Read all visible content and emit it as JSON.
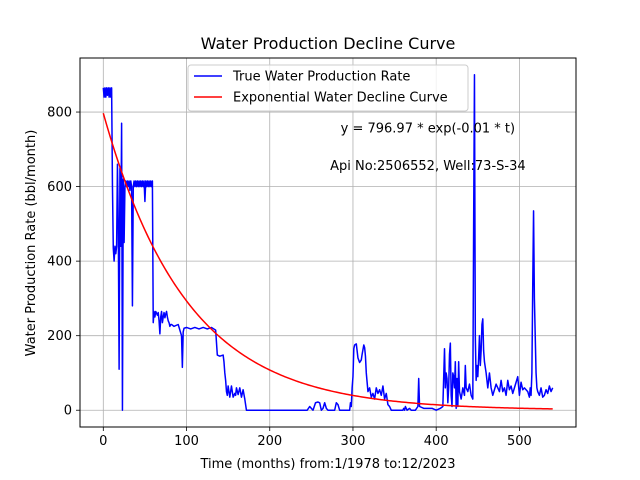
{
  "chart_data": {
    "type": "line",
    "title": "Water Production Decline Curve",
    "xlabel": "Time (months) from:1/1978 to:12/2023",
    "ylabel": "Water Production Rate (bbl/month)",
    "xlim": [
      -28,
      568
    ],
    "ylim": [
      -45,
      945
    ],
    "xticks": [
      0,
      100,
      200,
      300,
      400,
      500
    ],
    "yticks": [
      0,
      200,
      400,
      600,
      800
    ],
    "grid": true,
    "legend_position": "top-center",
    "annotations": [
      {
        "text": "y = 796.97 * exp(-0.01 * t)",
        "x": 390,
        "y": 745
      },
      {
        "text": "Api No:2506552, Well:73-S-34",
        "x": 390,
        "y": 645
      }
    ],
    "series": [
      {
        "name": "True Water Production Rate",
        "color": "#0000ff",
        "points": [
          [
            0,
            865
          ],
          [
            1,
            840
          ],
          [
            2,
            865
          ],
          [
            3,
            840
          ],
          [
            4,
            865
          ],
          [
            5,
            845
          ],
          [
            6,
            865
          ],
          [
            7,
            840
          ],
          [
            8,
            865
          ],
          [
            9,
            840
          ],
          [
            10,
            865
          ],
          [
            11,
            600
          ],
          [
            12,
            435
          ],
          [
            13,
            400
          ],
          [
            14,
            440
          ],
          [
            15,
            420
          ],
          [
            16,
            440
          ],
          [
            17,
            660
          ],
          [
            18,
            500
          ],
          [
            19,
            110
          ],
          [
            20,
            650
          ],
          [
            21,
            440
          ],
          [
            22,
            770
          ],
          [
            23,
            0
          ],
          [
            24,
            620
          ],
          [
            25,
            450
          ],
          [
            26,
            600
          ],
          [
            27,
            615
          ],
          [
            28,
            600
          ],
          [
            29,
            615
          ],
          [
            30,
            600
          ],
          [
            31,
            615
          ],
          [
            32,
            590
          ],
          [
            33,
            615
          ],
          [
            34,
            600
          ],
          [
            35,
            280
          ],
          [
            36,
            600
          ],
          [
            37,
            615
          ],
          [
            38,
            600
          ],
          [
            39,
            615
          ],
          [
            40,
            600
          ],
          [
            41,
            615
          ],
          [
            42,
            600
          ],
          [
            43,
            615
          ],
          [
            44,
            600
          ],
          [
            45,
            615
          ],
          [
            46,
            600
          ],
          [
            47,
            615
          ],
          [
            48,
            600
          ],
          [
            49,
            615
          ],
          [
            50,
            560
          ],
          [
            51,
            615
          ],
          [
            52,
            600
          ],
          [
            53,
            615
          ],
          [
            54,
            600
          ],
          [
            55,
            615
          ],
          [
            56,
            600
          ],
          [
            57,
            615
          ],
          [
            58,
            600
          ],
          [
            59,
            615
          ],
          [
            60,
            235
          ],
          [
            61,
            265
          ],
          [
            62,
            250
          ],
          [
            63,
            265
          ],
          [
            64,
            260
          ],
          [
            65,
            255
          ],
          [
            66,
            262
          ],
          [
            67,
            240
          ],
          [
            68,
            205
          ],
          [
            69,
            250
          ],
          [
            70,
            265
          ],
          [
            71,
            235
          ],
          [
            72,
            250
          ],
          [
            73,
            262
          ],
          [
            74,
            248
          ],
          [
            75,
            258
          ],
          [
            76,
            265
          ],
          [
            77,
            250
          ],
          [
            78,
            240
          ],
          [
            79,
            235
          ],
          [
            80,
            225
          ],
          [
            81,
            230
          ],
          [
            82,
            230
          ],
          [
            85,
            225
          ],
          [
            90,
            230
          ],
          [
            94,
            200
          ],
          [
            95,
            115
          ],
          [
            96,
            210
          ],
          [
            97,
            220
          ],
          [
            100,
            222
          ],
          [
            105,
            218
          ],
          [
            110,
            222
          ],
          [
            115,
            218
          ],
          [
            120,
            222
          ],
          [
            125,
            218
          ],
          [
            130,
            222
          ],
          [
            135,
            215
          ],
          [
            137,
            148
          ],
          [
            140,
            145
          ],
          [
            144,
            148
          ],
          [
            145,
            130
          ],
          [
            146,
            100
          ],
          [
            147,
            80
          ],
          [
            148,
            50
          ],
          [
            149,
            40
          ],
          [
            150,
            65
          ],
          [
            152,
            35
          ],
          [
            154,
            65
          ],
          [
            156,
            35
          ],
          [
            158,
            45
          ],
          [
            159,
            40
          ],
          [
            160,
            60
          ],
          [
            162,
            42
          ],
          [
            164,
            60
          ],
          [
            166,
            35
          ],
          [
            168,
            55
          ],
          [
            170,
            30
          ],
          [
            172,
            0
          ],
          [
            180,
            0
          ],
          [
            200,
            0
          ],
          [
            220,
            0
          ],
          [
            235,
            0
          ],
          [
            245,
            0
          ],
          [
            248,
            10
          ],
          [
            250,
            5
          ],
          [
            252,
            0
          ],
          [
            255,
            20
          ],
          [
            258,
            22
          ],
          [
            260,
            20
          ],
          [
            262,
            0
          ],
          [
            264,
            5
          ],
          [
            266,
            20
          ],
          [
            268,
            5
          ],
          [
            270,
            0
          ],
          [
            278,
            0
          ],
          [
            280,
            20
          ],
          [
            282,
            15
          ],
          [
            284,
            0
          ],
          [
            290,
            0
          ],
          [
            296,
            0
          ],
          [
            297,
            20
          ],
          [
            298,
            10
          ],
          [
            299,
            60
          ],
          [
            300,
            90
          ],
          [
            301,
            165
          ],
          [
            302,
            175
          ],
          [
            304,
            178
          ],
          [
            306,
            140
          ],
          [
            308,
            128
          ],
          [
            310,
            135
          ],
          [
            311,
            150
          ],
          [
            313,
            175
          ],
          [
            314,
            168
          ],
          [
            315,
            145
          ],
          [
            316,
            100
          ],
          [
            318,
            50
          ],
          [
            320,
            60
          ],
          [
            322,
            35
          ],
          [
            324,
            45
          ],
          [
            326,
            30
          ],
          [
            328,
            60
          ],
          [
            330,
            45
          ],
          [
            332,
            55
          ],
          [
            334,
            40
          ],
          [
            336,
            65
          ],
          [
            338,
            30
          ],
          [
            340,
            45
          ],
          [
            342,
            15
          ],
          [
            344,
            10
          ],
          [
            346,
            0
          ],
          [
            348,
            0
          ],
          [
            350,
            0
          ],
          [
            355,
            0
          ],
          [
            360,
            0
          ],
          [
            361,
            5
          ],
          [
            362,
            0
          ],
          [
            363,
            10
          ],
          [
            365,
            0
          ],
          [
            368,
            5
          ],
          [
            370,
            0
          ],
          [
            375,
            0
          ],
          [
            378,
            10
          ],
          [
            379,
            85
          ],
          [
            380,
            10
          ],
          [
            385,
            5
          ],
          [
            390,
            5
          ],
          [
            395,
            5
          ],
          [
            400,
            0
          ],
          [
            405,
            5
          ],
          [
            408,
            10
          ],
          [
            410,
            165
          ],
          [
            411,
            60
          ],
          [
            412,
            100
          ],
          [
            413,
            85
          ],
          [
            414,
            20
          ],
          [
            415,
            60
          ],
          [
            416,
            150
          ],
          [
            417,
            180
          ],
          [
            418,
            40
          ],
          [
            419,
            10
          ],
          [
            420,
            100
          ],
          [
            421,
            90
          ],
          [
            422,
            60
          ],
          [
            423,
            130
          ],
          [
            424,
            5
          ],
          [
            425,
            85
          ],
          [
            426,
            10
          ],
          [
            427,
            130
          ],
          [
            428,
            50
          ],
          [
            430,
            30
          ],
          [
            432,
            60
          ],
          [
            434,
            40
          ],
          [
            435,
            120
          ],
          [
            436,
            60
          ],
          [
            438,
            50
          ],
          [
            440,
            70
          ],
          [
            442,
            40
          ],
          [
            444,
            30
          ],
          [
            445,
            500
          ],
          [
            446,
            900
          ],
          [
            447,
            200
          ],
          [
            448,
            80
          ],
          [
            449,
            120
          ],
          [
            450,
            90
          ],
          [
            451,
            140
          ],
          [
            452,
            200
          ],
          [
            453,
            120
          ],
          [
            454,
            160
          ],
          [
            455,
            230
          ],
          [
            456,
            245
          ],
          [
            457,
            160
          ],
          [
            458,
            130
          ],
          [
            460,
            100
          ],
          [
            462,
            60
          ],
          [
            464,
            100
          ],
          [
            465,
            80
          ],
          [
            466,
            60
          ],
          [
            468,
            40
          ],
          [
            470,
            55
          ],
          [
            472,
            70
          ],
          [
            474,
            60
          ],
          [
            476,
            50
          ],
          [
            478,
            80
          ],
          [
            480,
            50
          ],
          [
            482,
            60
          ],
          [
            484,
            40
          ],
          [
            486,
            80
          ],
          [
            488,
            55
          ],
          [
            490,
            65
          ],
          [
            492,
            45
          ],
          [
            494,
            60
          ],
          [
            496,
            75
          ],
          [
            498,
            90
          ],
          [
            500,
            40
          ],
          [
            502,
            75
          ],
          [
            504,
            55
          ],
          [
            506,
            60
          ],
          [
            508,
            55
          ],
          [
            510,
            50
          ],
          [
            512,
            35
          ],
          [
            513,
            60
          ],
          [
            514,
            40
          ],
          [
            515,
            100
          ],
          [
            516,
            330
          ],
          [
            517,
            535
          ],
          [
            518,
            300
          ],
          [
            519,
            200
          ],
          [
            520,
            100
          ],
          [
            521,
            60
          ],
          [
            522,
            50
          ],
          [
            524,
            40
          ],
          [
            526,
            60
          ],
          [
            528,
            35
          ],
          [
            530,
            40
          ],
          [
            532,
            55
          ],
          [
            534,
            45
          ],
          [
            536,
            65
          ],
          [
            538,
            50
          ],
          [
            540,
            60
          ]
        ]
      },
      {
        "name": "Exponential Water Decline Curve",
        "color": "#ff0000",
        "a": 796.97,
        "b": -0.01,
        "t_range": [
          0,
          540
        ]
      }
    ]
  }
}
